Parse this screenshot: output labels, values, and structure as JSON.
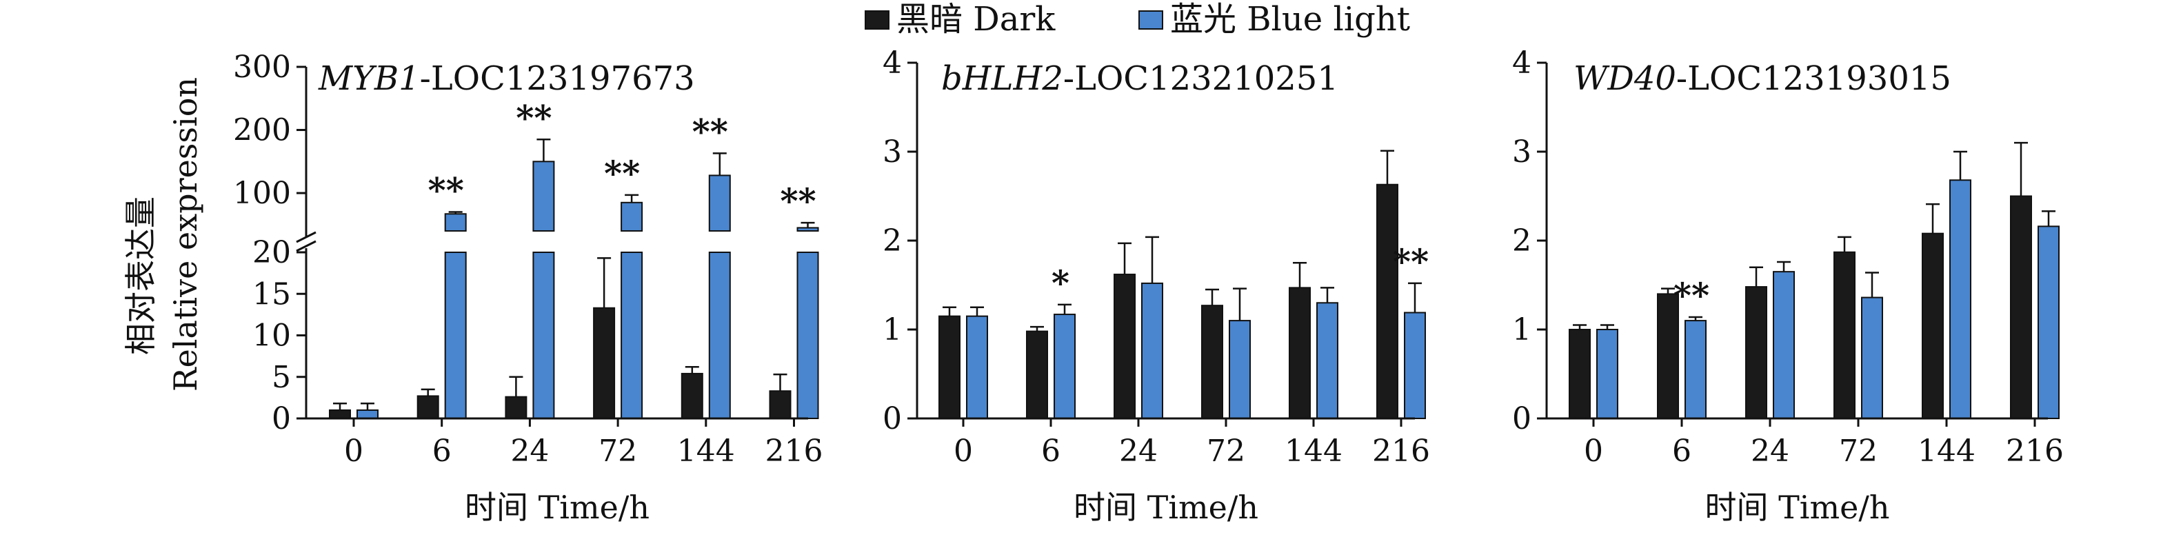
{
  "legend": {
    "items": [
      {
        "label": "黑暗 Dark",
        "color": "#1a1a1a"
      },
      {
        "label": "蓝光 Blue light",
        "color": "#4a86cf"
      }
    ]
  },
  "chart_data": [
    {
      "type": "bar",
      "title_italic": "MYB1",
      "title_rest": "-LOC123197673",
      "xlabel": "时间 Time/h",
      "ylabel_cn": "相对表达量",
      "ylabel_en": "Relative expression",
      "categories": [
        "0",
        "6",
        "24",
        "72",
        "144",
        "216"
      ],
      "axis_break": true,
      "lower_ylim": [
        0,
        20
      ],
      "lower_ticks": [
        0,
        5,
        10,
        15,
        20
      ],
      "upper_ylim": [
        40,
        300
      ],
      "upper_ticks": [
        100,
        200,
        300
      ],
      "series": [
        {
          "name": "黑暗 Dark",
          "values": [
            1.0,
            2.7,
            2.6,
            13.3,
            5.4,
            3.3
          ],
          "errors": [
            0.8,
            0.8,
            2.4,
            6.0,
            0.8,
            2.0
          ]
        },
        {
          "name": "蓝光 Blue light",
          "values": [
            1.0,
            67,
            150,
            85,
            128,
            45
          ],
          "errors": [
            0.8,
            3,
            35,
            12,
            35,
            8
          ]
        }
      ],
      "significance": [
        "",
        "**",
        "**",
        "**",
        "**",
        "**"
      ]
    },
    {
      "type": "bar",
      "title_italic": "bHLH2",
      "title_rest": "-LOC123210251",
      "xlabel": "时间 Time/h",
      "categories": [
        "0",
        "6",
        "24",
        "72",
        "144",
        "216"
      ],
      "ylim": [
        0,
        4
      ],
      "yticks": [
        0,
        1,
        2,
        3,
        4
      ],
      "series": [
        {
          "name": "黑暗 Dark",
          "values": [
            1.15,
            0.98,
            1.62,
            1.27,
            1.47,
            2.63
          ],
          "errors": [
            0.1,
            0.05,
            0.35,
            0.18,
            0.28,
            0.38
          ]
        },
        {
          "name": "蓝光 Blue light",
          "values": [
            1.15,
            1.17,
            1.52,
            1.1,
            1.3,
            1.19
          ],
          "errors": [
            0.1,
            0.11,
            0.52,
            0.36,
            0.17,
            0.33
          ]
        }
      ],
      "significance": [
        "",
        "*",
        "",
        "",
        "",
        "**"
      ]
    },
    {
      "type": "bar",
      "title_italic": "WD40",
      "title_rest": "-LOC123193015",
      "xlabel": "时间 Time/h",
      "categories": [
        "0",
        "6",
        "24",
        "72",
        "144",
        "216"
      ],
      "ylim": [
        0,
        4
      ],
      "yticks": [
        0,
        1,
        2,
        3,
        4
      ],
      "series": [
        {
          "name": "黑暗 Dark",
          "values": [
            1.0,
            1.4,
            1.48,
            1.87,
            2.08,
            2.5
          ],
          "errors": [
            0.05,
            0.06,
            0.22,
            0.17,
            0.33,
            0.6
          ]
        },
        {
          "name": "蓝光 Blue light",
          "values": [
            1.0,
            1.1,
            1.65,
            1.36,
            2.68,
            2.16
          ],
          "errors": [
            0.05,
            0.04,
            0.11,
            0.28,
            0.32,
            0.17
          ]
        }
      ],
      "significance": [
        "",
        "**",
        "",
        "",
        "",
        ""
      ]
    }
  ]
}
